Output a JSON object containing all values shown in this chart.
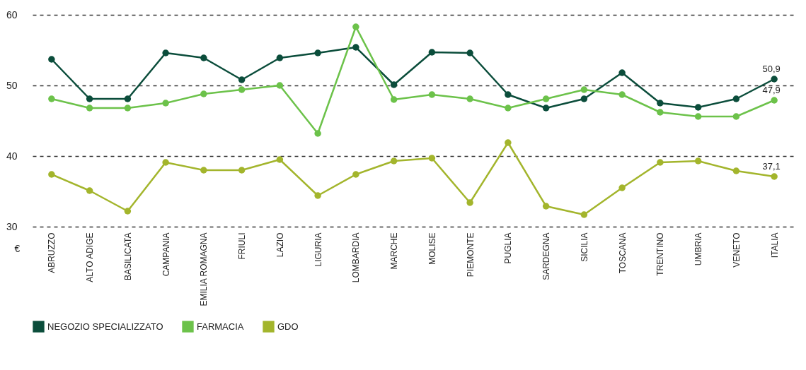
{
  "chart_data": {
    "type": "line",
    "ylabel": "€",
    "categories": [
      "ABRUZZO",
      "ALTO ADIGE",
      "BASILICATA",
      "CAMPANIA",
      "EMILIA ROMAGNA",
      "FRIULI",
      "LAZIO",
      "LIGURIA",
      "LOMBARDIA",
      "MARCHE",
      "MOLISE",
      "PIEMONTE",
      "PUGLIA",
      "SARDEGNA",
      "SICILIA",
      "TOSCANA",
      "TRENTINO",
      "UMBRIA",
      "VENETO",
      "ITALIA"
    ],
    "series": [
      {
        "name": "NEGOZIO SPECIALIZZATO",
        "color": "#0b4d3b",
        "values": [
          53.7,
          48.1,
          48.1,
          54.6,
          53.9,
          50.8,
          53.9,
          54.6,
          55.4,
          50.1,
          54.7,
          54.6,
          48.7,
          46.8,
          48.1,
          51.8,
          47.5,
          46.9,
          48.1,
          50.9
        ],
        "value_labels": [
          null,
          null,
          null,
          null,
          null,
          null,
          null,
          null,
          null,
          null,
          null,
          null,
          null,
          null,
          null,
          null,
          null,
          null,
          null,
          "50,9"
        ]
      },
      {
        "name": "FARMACIA",
        "color": "#6cc24a",
        "values": [
          48.1,
          46.8,
          46.8,
          47.5,
          48.8,
          49.4,
          50.0,
          43.2,
          58.3,
          48.0,
          48.7,
          48.1,
          46.8,
          48.1,
          49.4,
          48.7,
          46.2,
          45.6,
          45.6,
          47.9
        ],
        "value_labels": [
          null,
          null,
          null,
          null,
          null,
          null,
          null,
          null,
          null,
          null,
          null,
          null,
          null,
          null,
          null,
          null,
          null,
          null,
          null,
          "47,9"
        ]
      },
      {
        "name": "GDO",
        "color": "#a3b52c",
        "values": [
          37.4,
          35.1,
          32.2,
          39.1,
          38.0,
          38.0,
          39.5,
          34.4,
          37.4,
          39.3,
          39.7,
          33.4,
          41.9,
          32.9,
          31.7,
          35.5,
          39.1,
          39.3,
          37.9,
          37.1
        ],
        "value_labels": [
          null,
          null,
          null,
          null,
          null,
          null,
          null,
          null,
          null,
          null,
          null,
          null,
          null,
          null,
          null,
          null,
          null,
          null,
          null,
          "37,1"
        ]
      }
    ],
    "ylim": [
      30,
      60
    ],
    "yticks": [
      30,
      40,
      50,
      60
    ],
    "grid": "y",
    "legend": "bottom left",
    "marker": "circle",
    "line_style": "solid"
  }
}
